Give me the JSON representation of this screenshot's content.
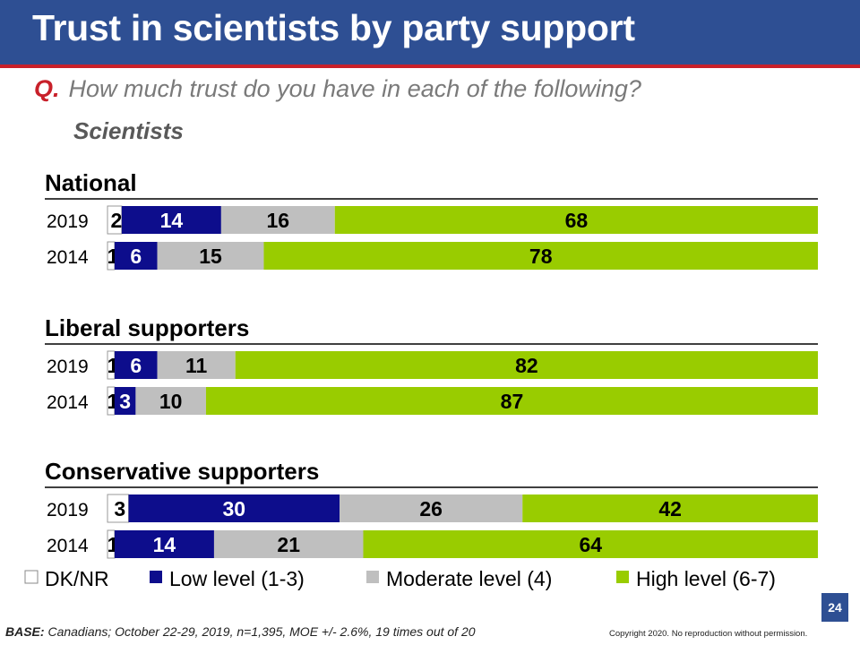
{
  "slide": {
    "title": "Trust in scientists by party support",
    "question_marker": "Q.",
    "question": "How much trust do you have in each of the following?",
    "subtitle": "Scientists",
    "base_label": "BASE:",
    "base_text": "Canadians; October 22-29, 2019, n=1,395, MOE +/- 2.6%, 19 times out of 20",
    "page_number": "24",
    "copyright": "Copyright 2020. No reproduction without permission."
  },
  "colors": {
    "header_bg": "#2e4f93",
    "accent_red": "#c8202a",
    "dk_nr": "#ffffff",
    "low": "#0d0d8c",
    "moderate": "#bfbfbf",
    "high": "#99cc00"
  },
  "chart_data": {
    "type": "bar",
    "orientation": "horizontal-stacked-100",
    "categories": [
      "DK/NR",
      "Low level (1-3)",
      "Moderate level (4)",
      "High level (6-7)"
    ],
    "legend_placement": "bottom",
    "groups": [
      {
        "title": "National",
        "rows": [
          {
            "year": "2019",
            "values": [
              2,
              14,
              16,
              68
            ]
          },
          {
            "year": "2014",
            "values": [
              1,
              6,
              15,
              78
            ]
          }
        ]
      },
      {
        "title": "Liberal supporters",
        "rows": [
          {
            "year": "2019",
            "values": [
              1,
              6,
              11,
              82
            ]
          },
          {
            "year": "2014",
            "values": [
              1,
              3,
              10,
              87
            ]
          }
        ]
      },
      {
        "title": "Conservative supporters",
        "rows": [
          {
            "year": "2019",
            "values": [
              3,
              30,
              26,
              42
            ]
          },
          {
            "year": "2014",
            "values": [
              1,
              14,
              21,
              64
            ]
          }
        ]
      }
    ]
  }
}
